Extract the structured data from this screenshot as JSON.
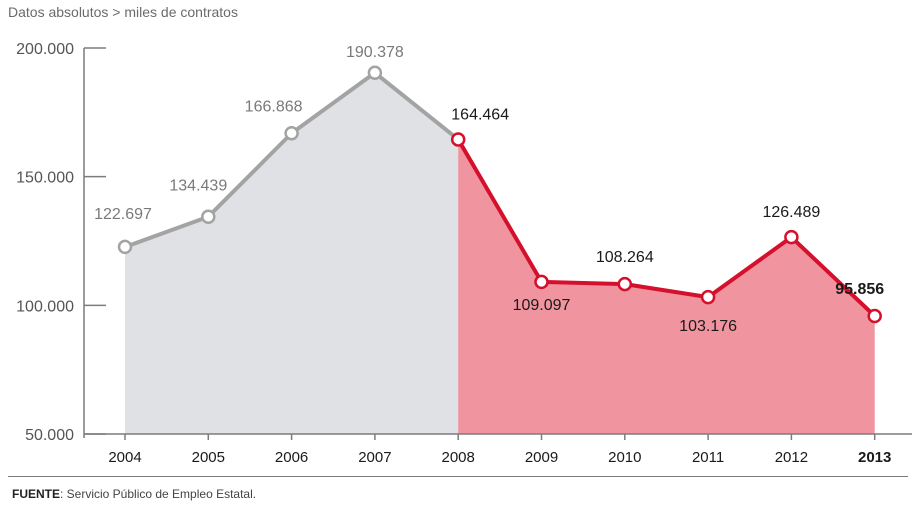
{
  "subtitle": "Datos absolutos > miles de contratos",
  "source": {
    "label": "FUENTE",
    "text": ": Servicio Público de Empleo Estatal."
  },
  "chart_data": {
    "type": "line",
    "title": "",
    "xlabel": "",
    "ylabel": "",
    "ylim": [
      50000,
      200000
    ],
    "yticks": [
      {
        "value": 50000,
        "label": "50.000"
      },
      {
        "value": 100000,
        "label": "100.000"
      },
      {
        "value": 150000,
        "label": "150.000"
      },
      {
        "value": 200000,
        "label": "200.000"
      }
    ],
    "categories": [
      "2004",
      "2005",
      "2006",
      "2007",
      "2008",
      "2009",
      "2010",
      "2011",
      "2012",
      "2013"
    ],
    "values": [
      122697,
      134439,
      166868,
      190378,
      164464,
      109097,
      108264,
      103176,
      126489,
      95856
    ],
    "value_labels": [
      "122.697",
      "134.439",
      "166.868",
      "190.378",
      "164.464",
      "109.097",
      "108.264",
      "103.176",
      "126.489",
      "95.856"
    ],
    "highlight_last": true,
    "segments": [
      {
        "from": "2004",
        "to": "2008",
        "line_color": "#a3a3a3",
        "area_color": "#dfe1e4"
      },
      {
        "from": "2008",
        "to": "2013",
        "line_color": "#d5102d",
        "area_color": "#f0949f"
      }
    ],
    "grid": false
  }
}
